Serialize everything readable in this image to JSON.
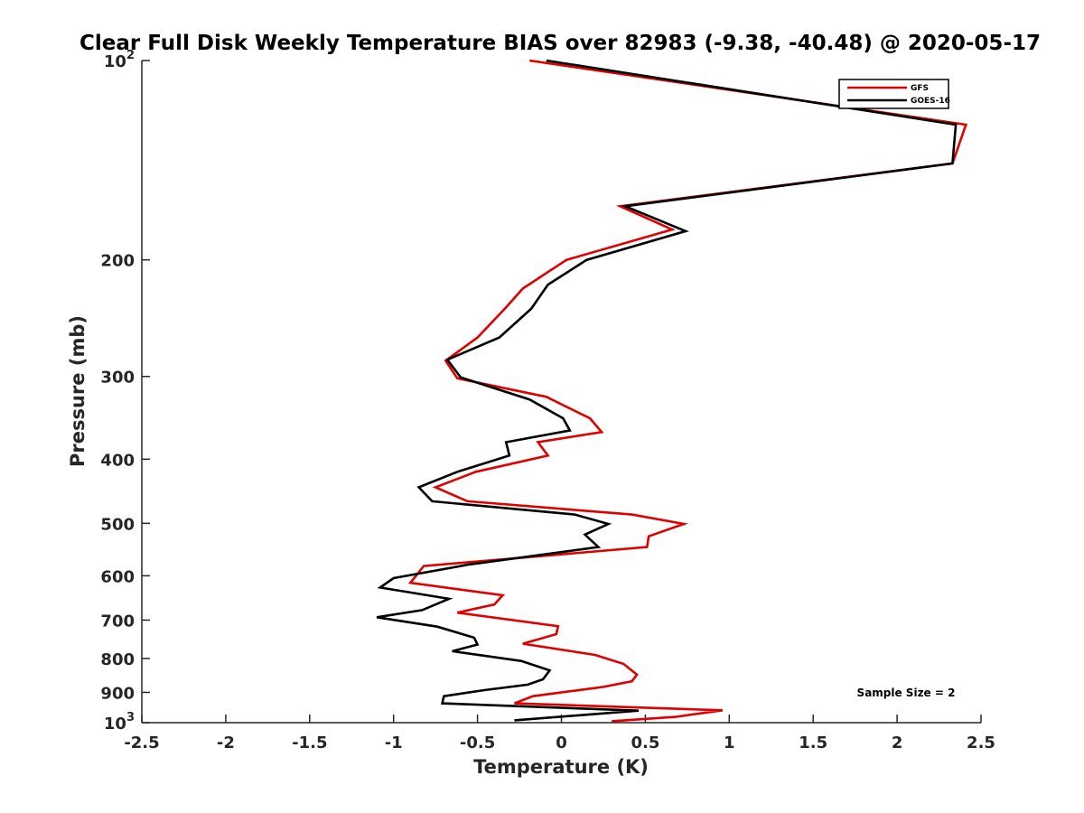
{
  "chart_data": {
    "type": "line",
    "title": "Clear Full Disk Weekly Temperature BIAS over 82983 (-9.38, -40.48) @ 2020-05-17",
    "xlabel": "Temperature (K)",
    "ylabel": "Pressure (mb)",
    "xlim": [
      -2.5,
      2.5
    ],
    "ylim": [
      100,
      1000
    ],
    "y_scale": "log",
    "y_reversed": true,
    "x_ticks": [
      "-2.5",
      "-2",
      "-1.5",
      "-1",
      "-0.5",
      "0",
      "0.5",
      "1",
      "1.5",
      "2",
      "2.5"
    ],
    "y_ticks": [
      {
        "base": "10",
        "exp": "2"
      },
      {
        "base": "200",
        "exp": ""
      },
      {
        "base": "300",
        "exp": ""
      },
      {
        "base": "400",
        "exp": ""
      },
      {
        "base": "500",
        "exp": ""
      },
      {
        "base": "600",
        "exp": ""
      },
      {
        "base": "700",
        "exp": ""
      },
      {
        "base": "800",
        "exp": ""
      },
      {
        "base": "900",
        "exp": ""
      },
      {
        "base": "10",
        "exp": "3"
      }
    ],
    "legend_position": "top-right",
    "annotation": "Sample Size = 2",
    "series": [
      {
        "name": "GFS",
        "color": "#e00000",
        "points": [
          [
            -0.19,
            100
          ],
          [
            2.41,
            125
          ],
          [
            2.33,
            143
          ],
          [
            0.35,
            166
          ],
          [
            0.66,
            180
          ],
          [
            0.03,
            200
          ],
          [
            -0.23,
            221
          ],
          [
            -0.33,
            236
          ],
          [
            -0.5,
            262
          ],
          [
            -0.69,
            284
          ],
          [
            -0.62,
            302
          ],
          [
            -0.09,
            322
          ],
          [
            0.17,
            347
          ],
          [
            0.24,
            364
          ],
          [
            -0.14,
            377
          ],
          [
            -0.08,
            395
          ],
          [
            -0.51,
            418
          ],
          [
            -0.75,
            441
          ],
          [
            -0.56,
            463
          ],
          [
            0.42,
            485
          ],
          [
            0.73,
            501
          ],
          [
            0.52,
            523
          ],
          [
            0.51,
            543
          ],
          [
            -0.82,
            580
          ],
          [
            -0.9,
            615
          ],
          [
            -0.35,
            642
          ],
          [
            -0.4,
            663
          ],
          [
            -0.62,
            682
          ],
          [
            -0.02,
            715
          ],
          [
            -0.03,
            735
          ],
          [
            -0.23,
            760
          ],
          [
            0.2,
            790
          ],
          [
            0.37,
            815
          ],
          [
            0.45,
            846
          ],
          [
            0.42,
            866
          ],
          [
            0.25,
            883
          ],
          [
            -0.17,
            912
          ],
          [
            -0.28,
            935
          ],
          [
            0.96,
            958
          ],
          [
            0.68,
            980
          ],
          [
            0.3,
            995
          ]
        ]
      },
      {
        "name": "GOES-16",
        "color": "#000000",
        "points": [
          [
            -0.09,
            100
          ],
          [
            2.35,
            125
          ],
          [
            2.33,
            143
          ],
          [
            0.38,
            166
          ],
          [
            0.74,
            181
          ],
          [
            0.15,
            200
          ],
          [
            -0.08,
            218
          ],
          [
            -0.18,
            237
          ],
          [
            -0.37,
            262
          ],
          [
            -0.68,
            283
          ],
          [
            -0.6,
            301
          ],
          [
            -0.19,
            325
          ],
          [
            0.01,
            347
          ],
          [
            0.05,
            362
          ],
          [
            -0.33,
            377
          ],
          [
            -0.31,
            395
          ],
          [
            -0.62,
            418
          ],
          [
            -0.85,
            441
          ],
          [
            -0.77,
            463
          ],
          [
            0.08,
            485
          ],
          [
            0.28,
            501
          ],
          [
            0.14,
            520
          ],
          [
            0.22,
            543
          ],
          [
            -0.55,
            577
          ],
          [
            -1.0,
            605
          ],
          [
            -1.08,
            625
          ],
          [
            -0.67,
            650
          ],
          [
            -0.83,
            676
          ],
          [
            -1.1,
            693
          ],
          [
            -0.74,
            716
          ],
          [
            -0.52,
            744
          ],
          [
            -0.5,
            762
          ],
          [
            -0.65,
            780
          ],
          [
            -0.24,
            807
          ],
          [
            -0.07,
            834
          ],
          [
            -0.11,
            860
          ],
          [
            -0.2,
            876
          ],
          [
            -0.46,
            893
          ],
          [
            -0.7,
            912
          ],
          [
            -0.71,
            935
          ],
          [
            0.46,
            959
          ],
          [
            -0.28,
            992
          ]
        ]
      }
    ]
  }
}
